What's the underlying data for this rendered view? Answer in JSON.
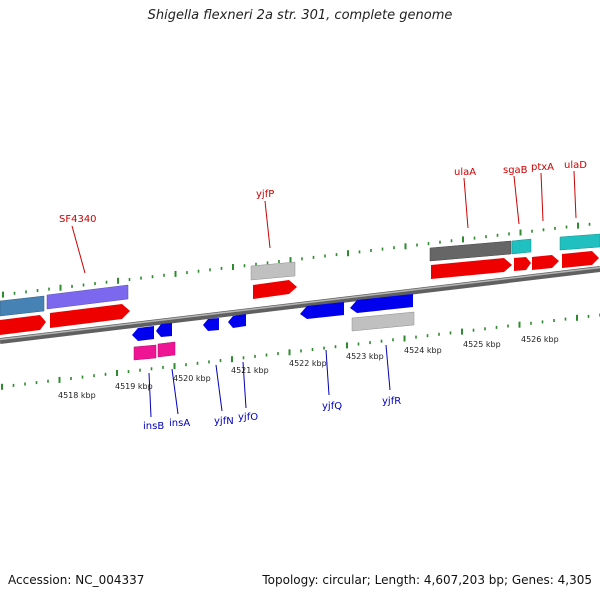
{
  "title": "Shigella flexneri 2a str. 301, complete genome",
  "footer": {
    "accession": "Accession: NC_004337",
    "summary": "Topology: circular; Length: 4,607,203 bp; Genes: 4,305"
  },
  "colors": {
    "backbone": "#8a8a8a",
    "forward_label": "#cc0000",
    "reverse_label": "#0000bb",
    "ticks": "#2e8b2e"
  },
  "kbp_labels": [
    "4518 kbp",
    "4519 kbp",
    "4520 kbp",
    "4521 kbp",
    "4522 kbp",
    "4523 kbp",
    "4524 kbp",
    "4525 kbp",
    "4526 kbp"
  ],
  "forward_genes": [
    "SF4340",
    "yjfP",
    "ulaA",
    "sgaB",
    "ptxA",
    "ulaD"
  ],
  "reverse_genes": [
    "insB",
    "insA",
    "yjfN",
    "yjfO",
    "yjfQ",
    "yjfR"
  ]
}
